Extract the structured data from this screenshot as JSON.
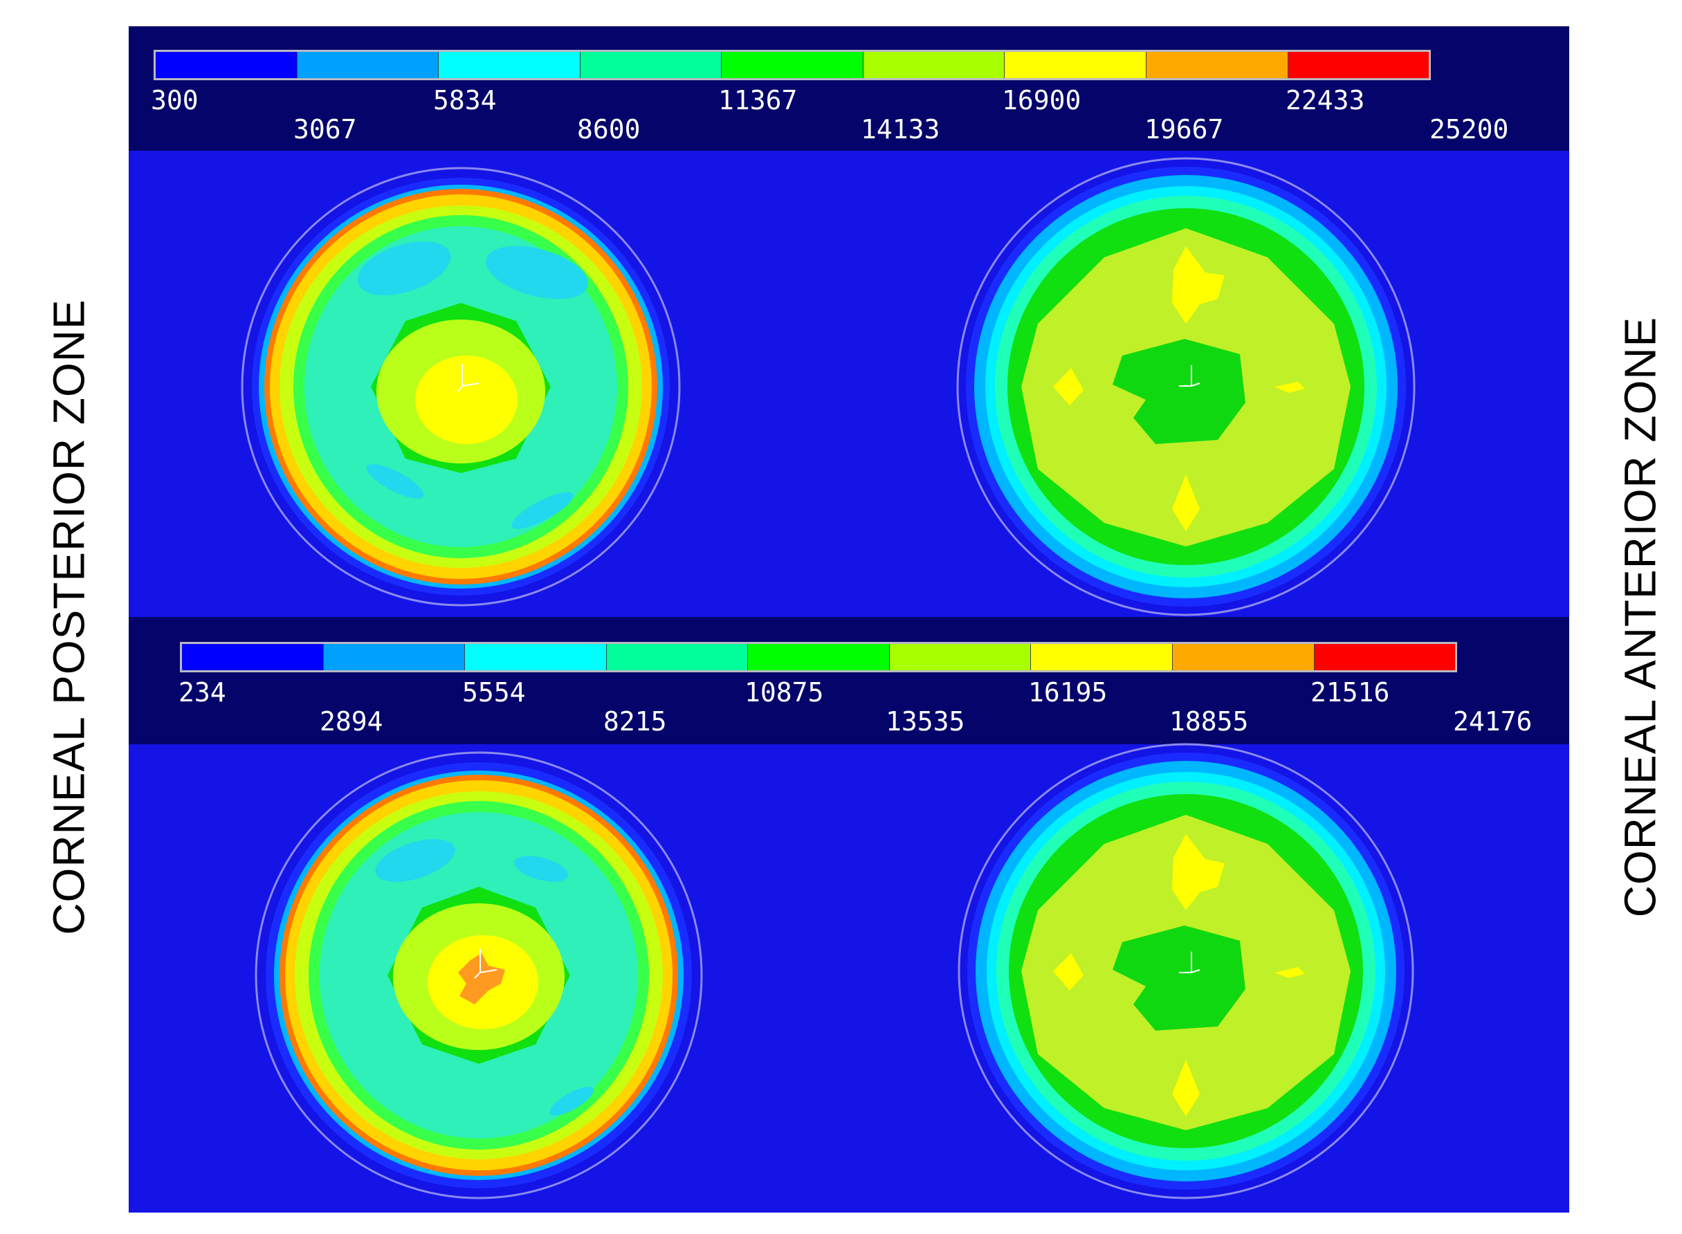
{
  "labels": {
    "left": "CORNEAL POSTERIOR ZONE",
    "right": "CORNEAL ANTERIOR ZONE"
  },
  "colors": {
    "panel_bg": "#1414e6",
    "legend_bg": "#04046a",
    "scale": [
      "#0000ff",
      "#00a0ff",
      "#00ffff",
      "#00ff9a",
      "#00ff00",
      "#a8ff00",
      "#ffff00",
      "#ffa800",
      "#ff0000"
    ]
  },
  "legend_top": {
    "row1": [
      "300",
      "5834",
      "11367",
      "16900",
      "22433"
    ],
    "row2": [
      "3067",
      "8600",
      "14133",
      "19667",
      "25200"
    ]
  },
  "legend_bottom": {
    "row1": [
      "234",
      "5554",
      "10875",
      "16195",
      "21516"
    ],
    "row2": [
      "2894",
      "8215",
      "13535",
      "18855",
      "24176"
    ]
  },
  "icons": {
    "axis_triad": "xyz-axis-triad-icon"
  }
}
